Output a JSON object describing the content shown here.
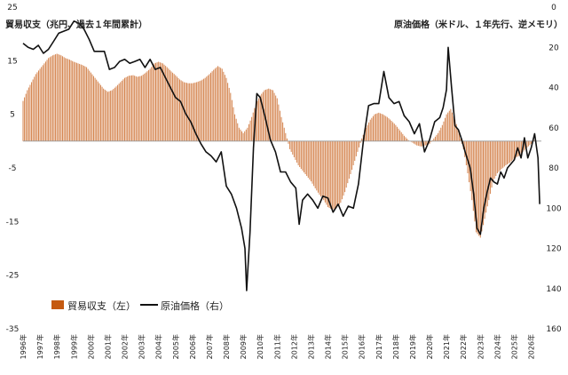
{
  "chart_data": {
    "type": "bar+line",
    "ylabel_left": "貿易収支（兆円、過去１年間累計）",
    "ylabel_right": "原油価格（米ドル、１年先行、逆メモリ）",
    "ylim_left": [
      -35,
      25
    ],
    "ylim_right": [
      160,
      0
    ],
    "right_axis_inverted": true,
    "left_ticks": [
      "25",
      "15",
      "5",
      "-5",
      "-15",
      "-25",
      "-35"
    ],
    "left_tick_values": [
      25,
      15,
      5,
      -5,
      -15,
      -25,
      -35
    ],
    "right_ticks": [
      "0",
      "20",
      "40",
      "60",
      "80",
      "100",
      "120",
      "140",
      "160"
    ],
    "right_tick_values": [
      0,
      20,
      40,
      60,
      80,
      100,
      120,
      140,
      160
    ],
    "x_ticks": [
      "1996年",
      "1997年",
      "1998年",
      "1999年",
      "2000年",
      "2001年",
      "2002年",
      "2003年",
      "2004年",
      "2005年",
      "2006年",
      "2007年",
      "2008年",
      "2009年",
      "2010年",
      "2011年",
      "2012年",
      "2013年",
      "2014年",
      "2015年",
      "2016年",
      "2017年",
      "2018年",
      "2019年",
      "2020年",
      "2021年",
      "2022年",
      "2023年",
      "2024年",
      "2025年",
      "2026年"
    ],
    "x_range": [
      1996.0,
      2026.6
    ],
    "legend": [
      {
        "label": "貿易収支（左）",
        "type": "bar",
        "color": "#c55a11"
      },
      {
        "label": "原油価格（右）",
        "type": "line",
        "color": "#111111"
      }
    ],
    "series": [
      {
        "name": "貿易収支（左）",
        "axis": "left",
        "type": "bar",
        "color": "#c55a11",
        "points": [
          [
            1996.0,
            7.5
          ],
          [
            1996.25,
            9.5
          ],
          [
            1996.5,
            11.0
          ],
          [
            1996.75,
            12.5
          ],
          [
            1997.0,
            13.5
          ],
          [
            1997.25,
            14.5
          ],
          [
            1997.5,
            15.5
          ],
          [
            1997.75,
            16.0
          ],
          [
            1998.0,
            16.3
          ],
          [
            1998.25,
            16.0
          ],
          [
            1998.5,
            15.5
          ],
          [
            1998.75,
            15.2
          ],
          [
            1999.0,
            14.8
          ],
          [
            1999.25,
            14.5
          ],
          [
            1999.5,
            14.2
          ],
          [
            1999.75,
            13.8
          ],
          [
            2000.0,
            12.8
          ],
          [
            2000.25,
            11.8
          ],
          [
            2000.5,
            10.8
          ],
          [
            2000.75,
            9.8
          ],
          [
            2001.0,
            9.2
          ],
          [
            2001.25,
            9.5
          ],
          [
            2001.5,
            10.2
          ],
          [
            2001.75,
            11.0
          ],
          [
            2002.0,
            11.8
          ],
          [
            2002.25,
            12.2
          ],
          [
            2002.5,
            12.3
          ],
          [
            2002.75,
            12.0
          ],
          [
            2003.0,
            12.2
          ],
          [
            2003.25,
            12.8
          ],
          [
            2003.5,
            13.5
          ],
          [
            2003.75,
            14.5
          ],
          [
            2004.0,
            14.8
          ],
          [
            2004.25,
            14.5
          ],
          [
            2004.5,
            13.8
          ],
          [
            2004.75,
            13.0
          ],
          [
            2005.0,
            12.3
          ],
          [
            2005.25,
            11.5
          ],
          [
            2005.5,
            11.0
          ],
          [
            2005.75,
            10.8
          ],
          [
            2006.0,
            10.8
          ],
          [
            2006.25,
            11.0
          ],
          [
            2006.5,
            11.3
          ],
          [
            2006.75,
            11.8
          ],
          [
            2007.0,
            12.5
          ],
          [
            2007.25,
            13.3
          ],
          [
            2007.5,
            14.0
          ],
          [
            2007.75,
            13.5
          ],
          [
            2008.0,
            11.8
          ],
          [
            2008.25,
            9.0
          ],
          [
            2008.5,
            5.0
          ],
          [
            2008.75,
            2.5
          ],
          [
            2009.0,
            1.5
          ],
          [
            2009.25,
            2.5
          ],
          [
            2009.5,
            4.5
          ],
          [
            2009.75,
            7.0
          ],
          [
            2010.0,
            8.5
          ],
          [
            2010.25,
            9.5
          ],
          [
            2010.5,
            9.8
          ],
          [
            2010.75,
            9.5
          ],
          [
            2011.0,
            8.0
          ],
          [
            2011.25,
            4.5
          ],
          [
            2011.5,
            1.5
          ],
          [
            2011.75,
            -1.5
          ],
          [
            2012.0,
            -3.0
          ],
          [
            2012.25,
            -4.5
          ],
          [
            2012.5,
            -5.5
          ],
          [
            2012.75,
            -6.5
          ],
          [
            2013.0,
            -7.5
          ],
          [
            2013.25,
            -8.8
          ],
          [
            2013.5,
            -10.0
          ],
          [
            2013.75,
            -11.0
          ],
          [
            2014.0,
            -12.3
          ],
          [
            2014.25,
            -12.8
          ],
          [
            2014.5,
            -12.5
          ],
          [
            2014.75,
            -11.5
          ],
          [
            2015.0,
            -9.5
          ],
          [
            2015.25,
            -7.0
          ],
          [
            2015.5,
            -4.5
          ],
          [
            2015.75,
            -2.0
          ],
          [
            2016.0,
            0.5
          ],
          [
            2016.25,
            2.5
          ],
          [
            2016.5,
            4.0
          ],
          [
            2016.75,
            5.0
          ],
          [
            2017.0,
            5.3
          ],
          [
            2017.25,
            5.0
          ],
          [
            2017.5,
            4.5
          ],
          [
            2017.75,
            3.8
          ],
          [
            2018.0,
            3.0
          ],
          [
            2018.25,
            2.0
          ],
          [
            2018.5,
            1.0
          ],
          [
            2018.75,
            0.2
          ],
          [
            2019.0,
            -0.3
          ],
          [
            2019.25,
            -0.8
          ],
          [
            2019.5,
            -1.0
          ],
          [
            2019.75,
            -0.8
          ],
          [
            2020.0,
            -0.5
          ],
          [
            2020.25,
            0.5
          ],
          [
            2020.5,
            1.5
          ],
          [
            2020.75,
            3.0
          ],
          [
            2021.0,
            5.0
          ],
          [
            2021.25,
            6.0
          ],
          [
            2021.5,
            4.0
          ],
          [
            2021.75,
            1.5
          ],
          [
            2022.0,
            -1.5
          ],
          [
            2022.25,
            -6.0
          ],
          [
            2022.5,
            -11.0
          ],
          [
            2022.75,
            -17.0
          ],
          [
            2023.0,
            -18.0
          ],
          [
            2023.25,
            -14.5
          ],
          [
            2023.5,
            -11.0
          ],
          [
            2023.75,
            -7.5
          ],
          [
            2024.0,
            -6.0
          ],
          [
            2024.25,
            -5.2
          ],
          [
            2024.5,
            -4.5
          ],
          [
            2024.75,
            -4.0
          ],
          [
            2025.0,
            -3.2
          ],
          [
            2025.25,
            -2.8
          ],
          [
            2025.5,
            -2.0
          ],
          [
            2025.75,
            -1.2
          ],
          [
            2026.0,
            -0.5
          ],
          [
            2026.25,
            0.5
          ]
        ]
      },
      {
        "name": "原油価格（右）",
        "axis": "right",
        "type": "line",
        "color": "#111111",
        "points": [
          [
            1996.0,
            18
          ],
          [
            1996.3,
            20
          ],
          [
            1996.6,
            21
          ],
          [
            1996.9,
            19
          ],
          [
            1997.2,
            23
          ],
          [
            1997.5,
            21
          ],
          [
            1997.8,
            17
          ],
          [
            1998.1,
            13
          ],
          [
            1998.4,
            12
          ],
          [
            1998.7,
            11
          ],
          [
            1999.0,
            7
          ],
          [
            1999.3,
            8
          ],
          [
            1999.6,
            11
          ],
          [
            1999.9,
            16
          ],
          [
            2000.2,
            22
          ],
          [
            2000.5,
            22
          ],
          [
            2000.8,
            22
          ],
          [
            2001.1,
            31
          ],
          [
            2001.4,
            30
          ],
          [
            2001.7,
            27
          ],
          [
            2002.0,
            26
          ],
          [
            2002.3,
            28
          ],
          [
            2002.6,
            27
          ],
          [
            2002.9,
            26
          ],
          [
            2003.2,
            30
          ],
          [
            2003.5,
            26
          ],
          [
            2003.8,
            31
          ],
          [
            2004.1,
            30
          ],
          [
            2004.4,
            35
          ],
          [
            2004.7,
            40
          ],
          [
            2005.0,
            45
          ],
          [
            2005.3,
            47
          ],
          [
            2005.6,
            53
          ],
          [
            2005.9,
            57
          ],
          [
            2006.2,
            63
          ],
          [
            2006.5,
            68
          ],
          [
            2006.8,
            72
          ],
          [
            2007.1,
            74
          ],
          [
            2007.4,
            77
          ],
          [
            2007.7,
            72
          ],
          [
            2008.0,
            89
          ],
          [
            2008.3,
            93
          ],
          [
            2008.6,
            100
          ],
          [
            2008.9,
            110
          ],
          [
            2009.1,
            120
          ],
          [
            2009.2,
            141
          ],
          [
            2009.4,
            112
          ],
          [
            2009.6,
            70
          ],
          [
            2009.8,
            43
          ],
          [
            2010.0,
            45
          ],
          [
            2010.3,
            55
          ],
          [
            2010.6,
            66
          ],
          [
            2010.9,
            72
          ],
          [
            2011.2,
            82
          ],
          [
            2011.5,
            82
          ],
          [
            2011.8,
            87
          ],
          [
            2012.1,
            90
          ],
          [
            2012.3,
            108
          ],
          [
            2012.5,
            96
          ],
          [
            2012.8,
            93
          ],
          [
            2013.1,
            96
          ],
          [
            2013.4,
            100
          ],
          [
            2013.7,
            94
          ],
          [
            2014.0,
            95
          ],
          [
            2014.3,
            102
          ],
          [
            2014.6,
            98
          ],
          [
            2014.9,
            104
          ],
          [
            2015.2,
            99
          ],
          [
            2015.5,
            100
          ],
          [
            2015.8,
            88
          ],
          [
            2016.1,
            66
          ],
          [
            2016.4,
            49
          ],
          [
            2016.7,
            48
          ],
          [
            2017.0,
            48
          ],
          [
            2017.3,
            32
          ],
          [
            2017.6,
            45
          ],
          [
            2017.9,
            48
          ],
          [
            2018.2,
            47
          ],
          [
            2018.5,
            54
          ],
          [
            2018.8,
            57
          ],
          [
            2019.1,
            63
          ],
          [
            2019.4,
            58
          ],
          [
            2019.7,
            72
          ],
          [
            2020.0,
            66
          ],
          [
            2020.3,
            57
          ],
          [
            2020.6,
            55
          ],
          [
            2020.8,
            50
          ],
          [
            2021.0,
            41
          ],
          [
            2021.1,
            20
          ],
          [
            2021.3,
            40
          ],
          [
            2021.5,
            59
          ],
          [
            2021.7,
            61
          ],
          [
            2021.9,
            66
          ],
          [
            2022.1,
            72
          ],
          [
            2022.4,
            80
          ],
          [
            2022.6,
            93
          ],
          [
            2022.8,
            110
          ],
          [
            2023.0,
            113
          ],
          [
            2023.2,
            100
          ],
          [
            2023.4,
            92
          ],
          [
            2023.6,
            85
          ],
          [
            2023.8,
            87
          ],
          [
            2024.0,
            88
          ],
          [
            2024.2,
            82
          ],
          [
            2024.4,
            85
          ],
          [
            2024.6,
            80
          ],
          [
            2024.8,
            78
          ],
          [
            2025.0,
            76
          ],
          [
            2025.2,
            70
          ],
          [
            2025.4,
            75
          ],
          [
            2025.6,
            65
          ],
          [
            2025.8,
            75
          ],
          [
            2026.0,
            70
          ],
          [
            2026.2,
            63
          ],
          [
            2026.4,
            75
          ],
          [
            2026.5,
            98
          ]
        ]
      }
    ]
  }
}
